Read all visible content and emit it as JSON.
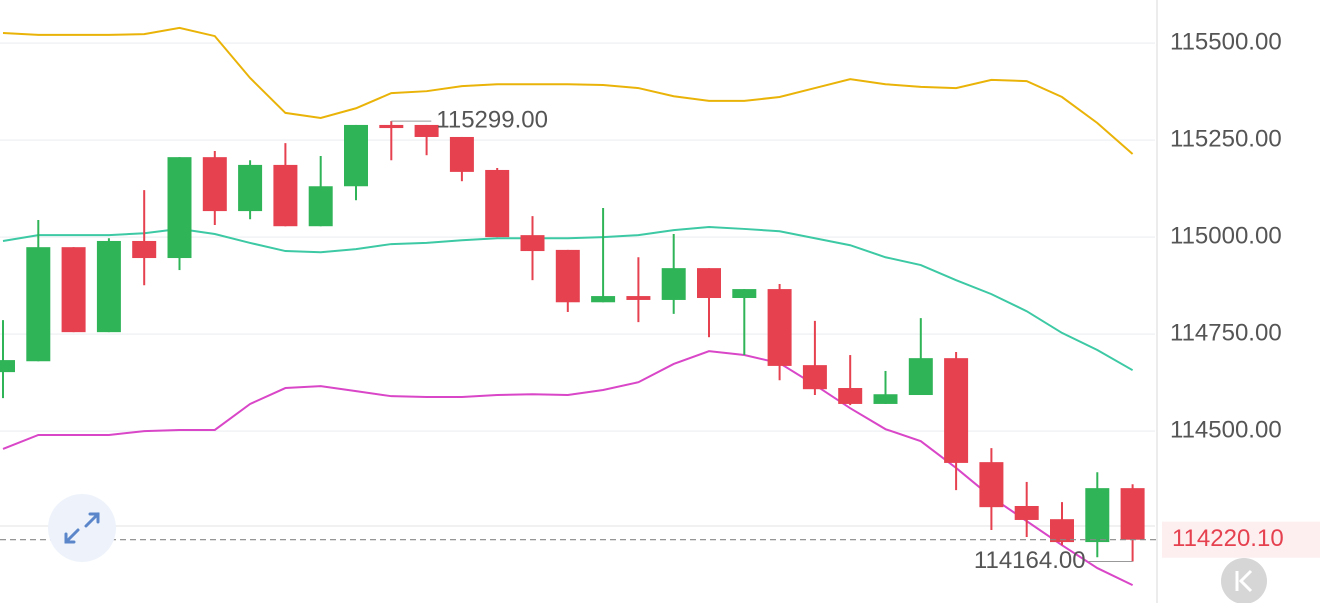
{
  "chart_data": {
    "type": "candlestick",
    "categories": [
      null,
      null,
      null,
      null,
      null,
      null,
      null,
      null,
      null,
      null,
      null,
      null,
      null,
      null,
      null,
      null,
      null,
      null,
      null,
      null,
      null,
      null,
      null,
      null,
      null,
      null,
      null,
      null,
      null,
      null,
      null,
      null,
      null
    ],
    "open": [
      114652,
      114680,
      114974,
      114755,
      114990,
      114946,
      115206,
      115067,
      115186,
      115028,
      115131,
      115289,
      115289,
      115258,
      115173,
      115005,
      114967,
      114832,
      114848,
      114838,
      114920,
      114843,
      114866,
      114670,
      114611,
      114570,
      114593,
      114688,
      114420,
      114307,
      114273,
      114214,
      114353
    ],
    "high": [
      114786,
      115044,
      114974,
      114997,
      115121,
      115206,
      115222,
      115198,
      115242,
      115209,
      115289,
      115299,
      115289,
      115258,
      115178,
      115054,
      114967,
      115075,
      114948,
      115008,
      114920,
      114866,
      114879,
      114784,
      114696,
      114655,
      114791,
      114704,
      114456,
      114369,
      114317,
      114394,
      114363
    ],
    "low": [
      114585,
      114680,
      114755,
      114755,
      114876,
      114915,
      115031,
      115046,
      115028,
      115028,
      115095,
      115198,
      115211,
      115144,
      115000,
      114889,
      114807,
      114832,
      114781,
      114802,
      114742,
      114696,
      114631,
      114593,
      114567,
      114570,
      114593,
      114348,
      114245,
      114227,
      114206,
      114175,
      114164
    ],
    "close": [
      114683,
      114974,
      114755,
      114990,
      114946,
      115206,
      115067,
      115186,
      115028,
      115131,
      115289,
      115281,
      115258,
      115168,
      115000,
      114964,
      114832,
      114848,
      114838,
      114920,
      114843,
      114866,
      114668,
      114608,
      114570,
      114595,
      114688,
      114418,
      114304,
      114271,
      114214,
      114353,
      114220.1
    ],
    "up_color": "#2fb457",
    "down_color": "#e5414f",
    "series": [
      {
        "color": "#eab308",
        "values": [
          115526,
          115521,
          115521,
          115521,
          115523,
          115539,
          115518,
          115410,
          115320,
          115307,
          115332,
          115371,
          115376,
          115389,
          115394,
          115394,
          115394,
          115392,
          115384,
          115363,
          115351,
          115351,
          115361,
          115384,
          115407,
          115394,
          115387,
          115384,
          115405,
          115402,
          115361,
          115294,
          115214
        ]
      },
      {
        "color": "#3cc9a4",
        "values": [
          114990,
          115005,
          115005,
          115005,
          115010,
          115021,
          115008,
          114985,
          114964,
          114961,
          114969,
          114982,
          114985,
          114992,
          114997,
          114997,
          114997,
          115000,
          115005,
          115018,
          115026,
          115021,
          115015,
          114997,
          114979,
          114948,
          114928,
          114889,
          114853,
          114809,
          114753,
          114709,
          114657
        ]
      },
      {
        "color": "#d946c7",
        "values": [
          114454,
          114490,
          114490,
          114490,
          114500,
          114503,
          114503,
          114570,
          114611,
          114616,
          114603,
          114590,
          114588,
          114588,
          114593,
          114595,
          114593,
          114606,
          114626,
          114673,
          114706,
          114696,
          114675,
          114619,
          114559,
          114505,
          114474,
          114405,
          114330,
          114268,
          114206,
          114147,
          114103
        ]
      }
    ],
    "ylim": [
      114057,
      115611
    ],
    "yticks": [
      {
        "value": 114500,
        "label": "114500.00"
      },
      {
        "value": 114750,
        "label": "114750.00"
      },
      {
        "value": 115000,
        "label": "115000.00"
      },
      {
        "value": 115250,
        "label": "115250.00"
      },
      {
        "value": 115500,
        "label": "115500.00"
      }
    ],
    "grid": true,
    "current_price": {
      "value": 114220.1,
      "label": "114220.10"
    },
    "max_label": {
      "value": 115299,
      "label": "115299.00"
    },
    "min_label": {
      "value": 114164,
      "label": "114164.00"
    }
  }
}
